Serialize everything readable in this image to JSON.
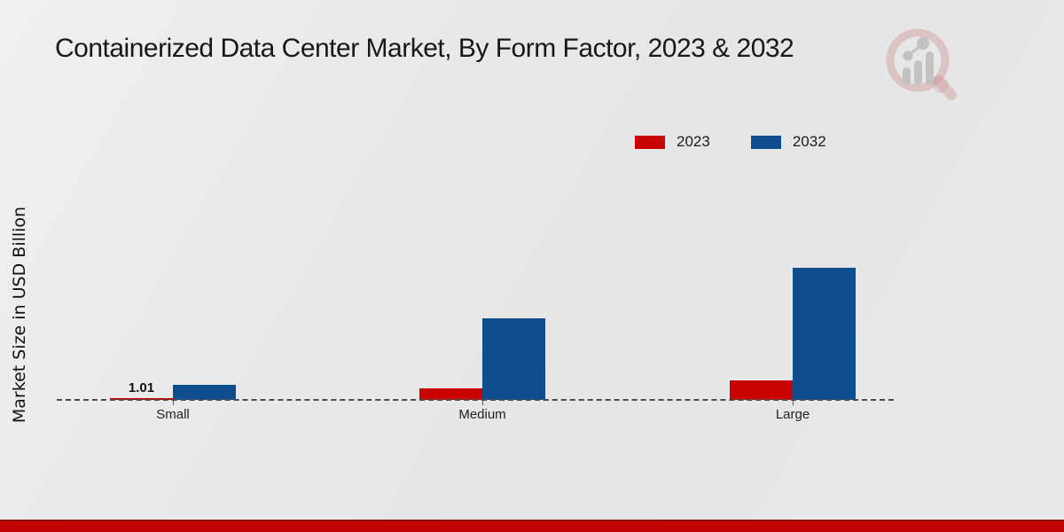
{
  "title": "Containerized Data Center Market, By Form Factor, 2023 & 2032",
  "y_axis_label": "Market Size in USD Billion",
  "legend": {
    "items": [
      {
        "label": "2023",
        "color": "#c90404"
      },
      {
        "label": "2032",
        "color": "#0e4d8e"
      }
    ],
    "position": "top-right"
  },
  "colors": {
    "series_2023": "#c90404",
    "series_2032": "#0e4d8e",
    "background": "#e9e9e9",
    "bottom_stripe": "#c10505",
    "axis_dash": "#4c4c4c",
    "text": "#181818"
  },
  "chart_data": {
    "type": "bar",
    "categories": [
      "Small",
      "Medium",
      "Large"
    ],
    "series": [
      {
        "name": "2023",
        "color": "#c90404",
        "values": [
          1.01,
          6.5,
          11.0
        ]
      },
      {
        "name": "2032",
        "color": "#0e4d8e",
        "values": [
          8.5,
          46.0,
          74.5
        ]
      }
    ],
    "title": "Containerized Data Center Market, By Form Factor, 2023 & 2032",
    "xlabel": "",
    "ylabel": "Market Size in USD Billion",
    "ylim": [
      0,
      80
    ],
    "grid": false,
    "y_ticks_visible": false,
    "legend_position": "top-right",
    "baseline_style": "dashed",
    "data_labels": [
      {
        "series": "2023",
        "category": "Small",
        "text": "1.01"
      }
    ]
  },
  "logo": {
    "name": "magnifier-bar-chart-logo"
  }
}
